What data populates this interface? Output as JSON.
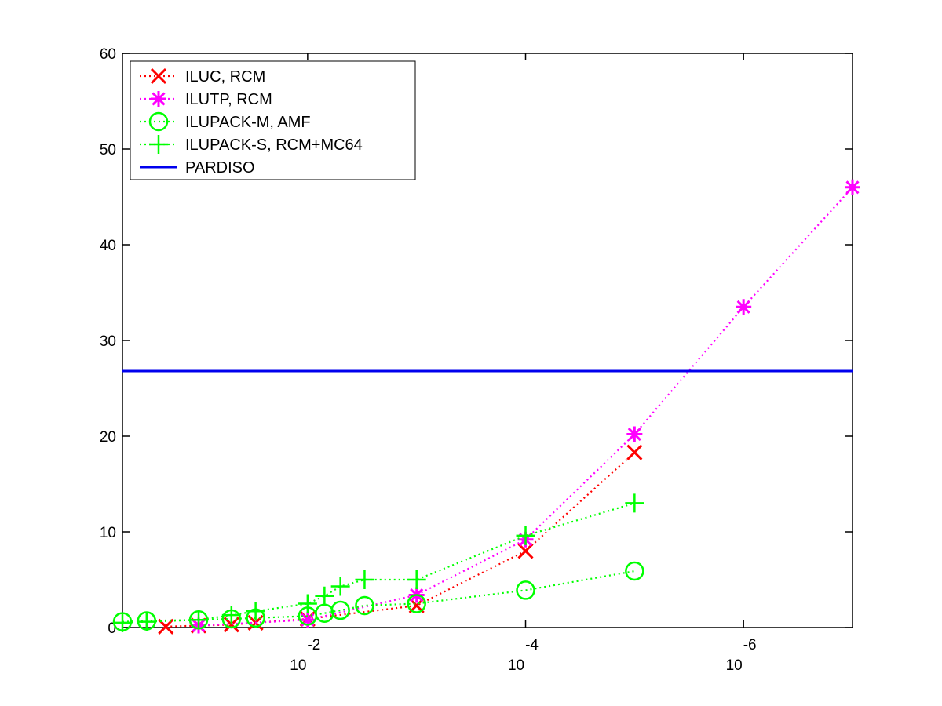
{
  "chart_data": {
    "type": "line",
    "title": "",
    "xlabel": "",
    "ylabel": "",
    "x_scale": "log",
    "x_axis_reversed": true,
    "xlim": [
      0.5,
      1e-07
    ],
    "ylim": [
      0,
      60
    ],
    "x_ticks": [
      {
        "value": 0.01,
        "base": "10",
        "exponent": "-2"
      },
      {
        "value": 0.0001,
        "base": "10",
        "exponent": "-4"
      },
      {
        "value": 1e-06,
        "base": "10",
        "exponent": "-6"
      }
    ],
    "y_ticks": [
      0,
      10,
      20,
      30,
      40,
      50,
      60
    ],
    "y_tick_labels": [
      "0",
      "10",
      "20",
      "30",
      "40",
      "50",
      "60"
    ],
    "grid": false,
    "legend_position": "top-left",
    "series": [
      {
        "name": "ILUC, RCM",
        "color": "#ff0000",
        "marker": "x",
        "line_style": "dotted",
        "x": [
          0.2,
          0.1,
          0.05,
          0.03,
          0.01,
          0.001,
          0.0001,
          1e-05
        ],
        "y": [
          0.1,
          0.2,
          0.3,
          0.5,
          0.9,
          2.3,
          8.0,
          18.3
        ]
      },
      {
        "name": "ILUTP, RCM",
        "color": "#ff00ff",
        "marker": "asterisk",
        "line_style": "dotted",
        "x": [
          0.1,
          0.01,
          0.001,
          0.0001,
          1e-05,
          1e-06,
          1e-07
        ],
        "y": [
          0.2,
          0.8,
          3.4,
          9.2,
          20.2,
          33.5,
          46.0
        ]
      },
      {
        "name": "ILUPACK-M, AMF",
        "color": "#00ff00",
        "marker": "circle",
        "line_style": "dotted",
        "x": [
          0.5,
          0.3,
          0.1,
          0.05,
          0.03,
          0.01,
          0.007,
          0.005,
          0.003,
          0.001,
          0.0001,
          1e-05
        ],
        "y": [
          0.6,
          0.7,
          0.8,
          0.9,
          1.0,
          1.2,
          1.5,
          1.8,
          2.3,
          2.5,
          3.9,
          5.9
        ]
      },
      {
        "name": "ILUPACK-S, RCM+MC64",
        "color": "#00ff00",
        "marker": "plus",
        "line_style": "dotted",
        "x": [
          0.5,
          0.3,
          0.1,
          0.05,
          0.03,
          0.01,
          0.007,
          0.005,
          0.003,
          0.001,
          0.0001,
          1e-05
        ],
        "y": [
          0.5,
          0.6,
          0.8,
          1.3,
          1.7,
          2.5,
          3.3,
          4.3,
          5.0,
          5.0,
          9.6,
          13.0
        ]
      },
      {
        "name": "PARDISO",
        "color": "#0000ee",
        "marker": "none",
        "line_style": "solid",
        "x": [
          0.5,
          1e-07
        ],
        "y": [
          26.8,
          26.8
        ]
      }
    ]
  }
}
